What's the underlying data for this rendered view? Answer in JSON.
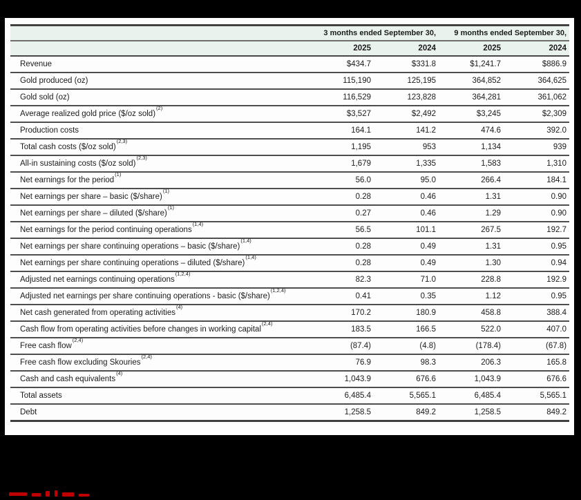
{
  "colors": {
    "surround_black": "#000000",
    "paper_white": "#fdfdfd",
    "header_green": "#e9f2ec",
    "rule_gray": "#4d4d4d",
    "text_black": "#1c1c1c",
    "clipped_text_red": "#c00000"
  },
  "table": {
    "header": {
      "label_column_header": "",
      "col_groups": [
        {
          "label": "3 months ended September 30,"
        },
        {
          "label": "9 months ended September 30,"
        }
      ],
      "years": [
        "2025",
        "2024",
        "2025",
        "2024"
      ]
    },
    "rows": [
      {
        "label": "Revenue",
        "sup": "",
        "values": [
          "$434.7",
          "$331.8",
          "$1,241.7",
          "$886.9"
        ]
      },
      {
        "label": "Gold produced (oz)",
        "sup": "",
        "values": [
          "115,190",
          "125,195",
          "364,852",
          "364,625"
        ]
      },
      {
        "label": "Gold sold (oz)",
        "sup": "",
        "values": [
          "116,529",
          "123,828",
          "364,281",
          "361,062"
        ]
      },
      {
        "label": "Average realized gold price ($/oz sold)",
        "sup": "(2)",
        "values": [
          "$3,527",
          "$2,492",
          "$3,245",
          "$2,309"
        ]
      },
      {
        "label": "Production costs",
        "sup": "",
        "values": [
          "164.1",
          "141.2",
          "474.6",
          "392.0"
        ]
      },
      {
        "label": "Total cash costs ($/oz sold)",
        "sup": "(2,3)",
        "values": [
          "1,195",
          "953",
          "1,134",
          "939"
        ]
      },
      {
        "label": "All-in sustaining costs ($/oz sold)",
        "sup": "(2,3)",
        "values": [
          "1,679",
          "1,335",
          "1,583",
          "1,310"
        ]
      },
      {
        "label": "Net earnings for the period",
        "sup": "(1)",
        "values": [
          "56.0",
          "95.0",
          "266.4",
          "184.1"
        ]
      },
      {
        "label": "Net earnings per share – basic ($/share)",
        "sup": "(1)",
        "values": [
          "0.28",
          "0.46",
          "1.31",
          "0.90"
        ]
      },
      {
        "label": "Net earnings per share – diluted ($/share)",
        "sup": "(1)",
        "values": [
          "0.27",
          "0.46",
          "1.29",
          "0.90"
        ]
      },
      {
        "label": "Net earnings for the period continuing operations",
        "sup": "(1,4)",
        "values": [
          "56.5",
          "101.1",
          "267.5",
          "192.7"
        ]
      },
      {
        "label": "Net earnings per share continuing operations – basic ($/share)",
        "sup": "(1,4)",
        "values": [
          "0.28",
          "0.49",
          "1.31",
          "0.95"
        ]
      },
      {
        "label": "Net earnings per share continuing operations – diluted ($/share)",
        "sup": "(1,4)",
        "values": [
          "0.28",
          "0.49",
          "1.30",
          "0.94"
        ]
      },
      {
        "label": "Adjusted net earnings continuing operations",
        "sup": "(1,2,4)",
        "values": [
          "82.3",
          "71.0",
          "228.8",
          "192.9"
        ]
      },
      {
        "label": "Adjusted net earnings per share continuing operations - basic ($/share)",
        "sup": "(1,2,4)",
        "values": [
          "0.41",
          "0.35",
          "1.12",
          "0.95"
        ]
      },
      {
        "label": "Net cash generated from operating activities",
        "sup": "(4)",
        "values": [
          "170.2",
          "180.9",
          "458.8",
          "388.4"
        ]
      },
      {
        "label": "Cash flow from operating activities before changes in working capital",
        "sup": "(2,4)",
        "values": [
          "183.5",
          "166.5",
          "522.0",
          "407.0"
        ]
      },
      {
        "label": "Free cash flow",
        "sup": "(2,4)",
        "values": [
          "(87.4)",
          "(4.8)",
          "(178.4)",
          "(67.8)"
        ]
      },
      {
        "label": "Free cash flow excluding Skouries",
        "sup": "(2,4)",
        "values": [
          "76.9",
          "98.3",
          "206.3",
          "165.8"
        ]
      },
      {
        "label": "Cash and cash equivalents",
        "sup": "(4)",
        "values": [
          "1,043.9",
          "676.6",
          "1,043.9",
          "676.6"
        ]
      },
      {
        "label": "Total assets",
        "sup": "",
        "values": [
          "6,485.4",
          "5,565.1",
          "6,485.4",
          "5,565.1"
        ]
      },
      {
        "label": "Debt",
        "sup": "",
        "values": [
          "1,258.5",
          "849.2",
          "1,258.5",
          "849.2"
        ]
      }
    ]
  }
}
